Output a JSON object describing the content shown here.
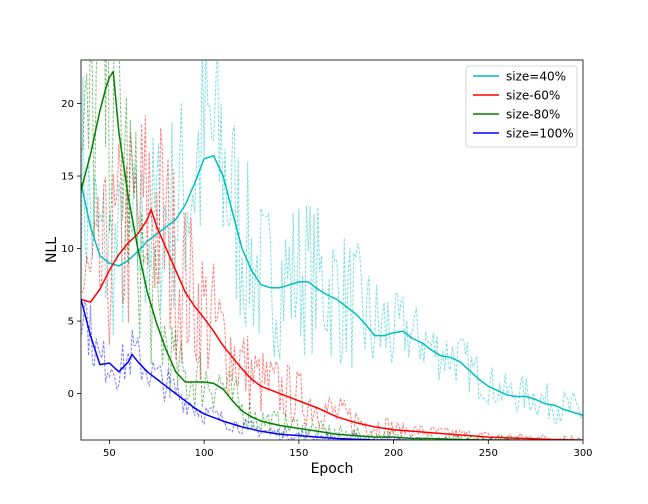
{
  "chart_data": {
    "type": "line",
    "title": "",
    "xlabel": "Epoch",
    "ylabel": "NLL",
    "xlim": [
      35,
      300
    ],
    "ylim": [
      -3.2,
      23
    ],
    "xticks": [
      50,
      100,
      150,
      200,
      250,
      300
    ],
    "yticks": [
      0,
      5,
      10,
      15,
      20
    ],
    "legend_position": "top-right",
    "series": [
      {
        "name": "size=40%",
        "color": "#00bfbf",
        "x": [
          35,
          40,
          45,
          50,
          55,
          60,
          65,
          70,
          75,
          80,
          85,
          90,
          95,
          100,
          105,
          110,
          115,
          120,
          125,
          130,
          135,
          140,
          145,
          150,
          155,
          160,
          165,
          170,
          175,
          180,
          185,
          190,
          195,
          200,
          205,
          210,
          215,
          220,
          225,
          230,
          235,
          240,
          245,
          250,
          255,
          260,
          265,
          270,
          275,
          280,
          285,
          290,
          295,
          300
        ],
        "values": [
          14.5,
          11.5,
          9.5,
          9.0,
          8.8,
          9.2,
          9.8,
          10.5,
          11.0,
          11.5,
          12.0,
          13.0,
          14.5,
          16.2,
          16.4,
          15.0,
          12.5,
          10.0,
          8.5,
          7.5,
          7.3,
          7.3,
          7.5,
          7.7,
          7.7,
          7.2,
          6.8,
          6.5,
          6.0,
          5.5,
          4.8,
          4.0,
          4.0,
          4.2,
          4.3,
          3.8,
          3.5,
          3.0,
          2.6,
          2.5,
          2.2,
          1.6,
          1.0,
          0.5,
          0.2,
          -0.1,
          -0.2,
          -0.2,
          -0.4,
          -0.7,
          -0.8,
          -1.1,
          -1.3,
          -1.5
        ]
      },
      {
        "name": "size-60%",
        "color": "#ff0000",
        "x": [
          35,
          40,
          45,
          50,
          55,
          60,
          65,
          70,
          72,
          75,
          80,
          85,
          90,
          95,
          100,
          105,
          110,
          115,
          120,
          125,
          130,
          140,
          150,
          160,
          170,
          180,
          190,
          200,
          210,
          220,
          230,
          240,
          250,
          260,
          270,
          280,
          290,
          300
        ],
        "values": [
          6.5,
          6.3,
          7.2,
          8.5,
          9.6,
          10.4,
          11.0,
          12.0,
          12.7,
          11.5,
          10.0,
          8.5,
          7.0,
          6.0,
          5.2,
          4.3,
          3.3,
          2.5,
          1.7,
          1.0,
          0.5,
          0.0,
          -0.5,
          -1.0,
          -1.6,
          -2.0,
          -2.3,
          -2.5,
          -2.6,
          -2.7,
          -2.8,
          -2.9,
          -3.0,
          -3.05,
          -3.1,
          -3.15,
          -3.18,
          -3.2
        ]
      },
      {
        "name": "size-80%",
        "color": "#008000",
        "x": [
          35,
          40,
          45,
          48,
          50,
          52,
          55,
          60,
          65,
          70,
          75,
          80,
          85,
          90,
          95,
          100,
          105,
          110,
          115,
          120,
          125,
          130,
          140,
          150,
          160,
          170,
          180,
          190,
          200,
          210,
          220,
          230,
          240,
          250,
          260,
          270,
          280,
          290,
          300
        ],
        "values": [
          14.0,
          16.5,
          19.5,
          21.0,
          21.8,
          22.2,
          18.0,
          13.5,
          10.0,
          7.0,
          4.8,
          3.0,
          1.5,
          0.8,
          0.8,
          0.8,
          0.7,
          0.3,
          -0.5,
          -1.2,
          -1.6,
          -1.9,
          -2.2,
          -2.4,
          -2.6,
          -2.8,
          -2.9,
          -3.0,
          -3.0,
          -3.1,
          -3.1,
          -3.15,
          -3.18,
          -3.2,
          -3.2,
          -3.22,
          -3.24,
          -3.25,
          -3.25
        ]
      },
      {
        "name": "size=100%",
        "color": "#0000ff",
        "x": [
          35,
          40,
          45,
          50,
          55,
          60,
          62,
          65,
          70,
          75,
          80,
          85,
          90,
          95,
          100,
          110,
          120,
          130,
          140,
          150,
          160,
          170,
          180,
          190,
          200,
          210,
          220,
          230,
          240,
          250,
          260,
          270,
          280,
          290,
          300
        ],
        "values": [
          6.5,
          4.0,
          2.0,
          2.1,
          1.5,
          2.2,
          2.7,
          2.2,
          1.5,
          1.0,
          0.5,
          0.0,
          -0.5,
          -1.0,
          -1.4,
          -1.9,
          -2.3,
          -2.6,
          -2.8,
          -2.9,
          -3.0,
          -3.1,
          -3.15,
          -3.2,
          -3.2,
          -3.22,
          -3.25,
          -3.25,
          -3.27,
          -3.28,
          -3.28,
          -3.29,
          -3.3,
          -3.3,
          -3.3
        ]
      }
    ]
  }
}
